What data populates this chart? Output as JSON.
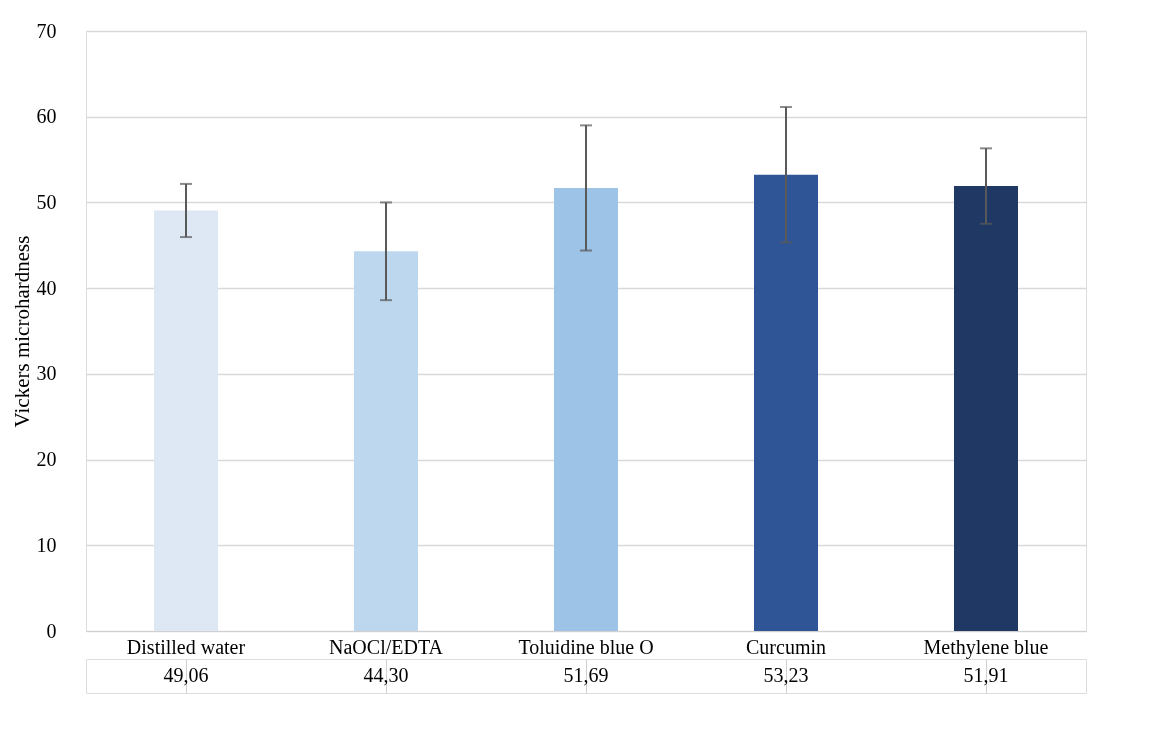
{
  "chart_data": {
    "type": "bar",
    "ylabel": "Vickers microhardness",
    "categories": [
      "Distilled water",
      "NaOCl/EDTA",
      "Toluidine blue O",
      "Curcumin",
      "Methylene blue"
    ],
    "values": [
      49.06,
      44.3,
      51.69,
      53.23,
      51.91
    ],
    "value_labels": [
      "49,06",
      "44,30",
      "51,69",
      "53,23",
      "51,91"
    ],
    "errors": [
      3.1,
      5.7,
      7.3,
      7.9,
      4.4
    ],
    "colors": [
      "#dde8f4",
      "#bdd7ee",
      "#9dc3e6",
      "#2f5597",
      "#203864"
    ],
    "ylim": [
      0,
      70
    ],
    "yticks": [
      0,
      10,
      20,
      30,
      40,
      50,
      60,
      70
    ],
    "grid": "y"
  }
}
